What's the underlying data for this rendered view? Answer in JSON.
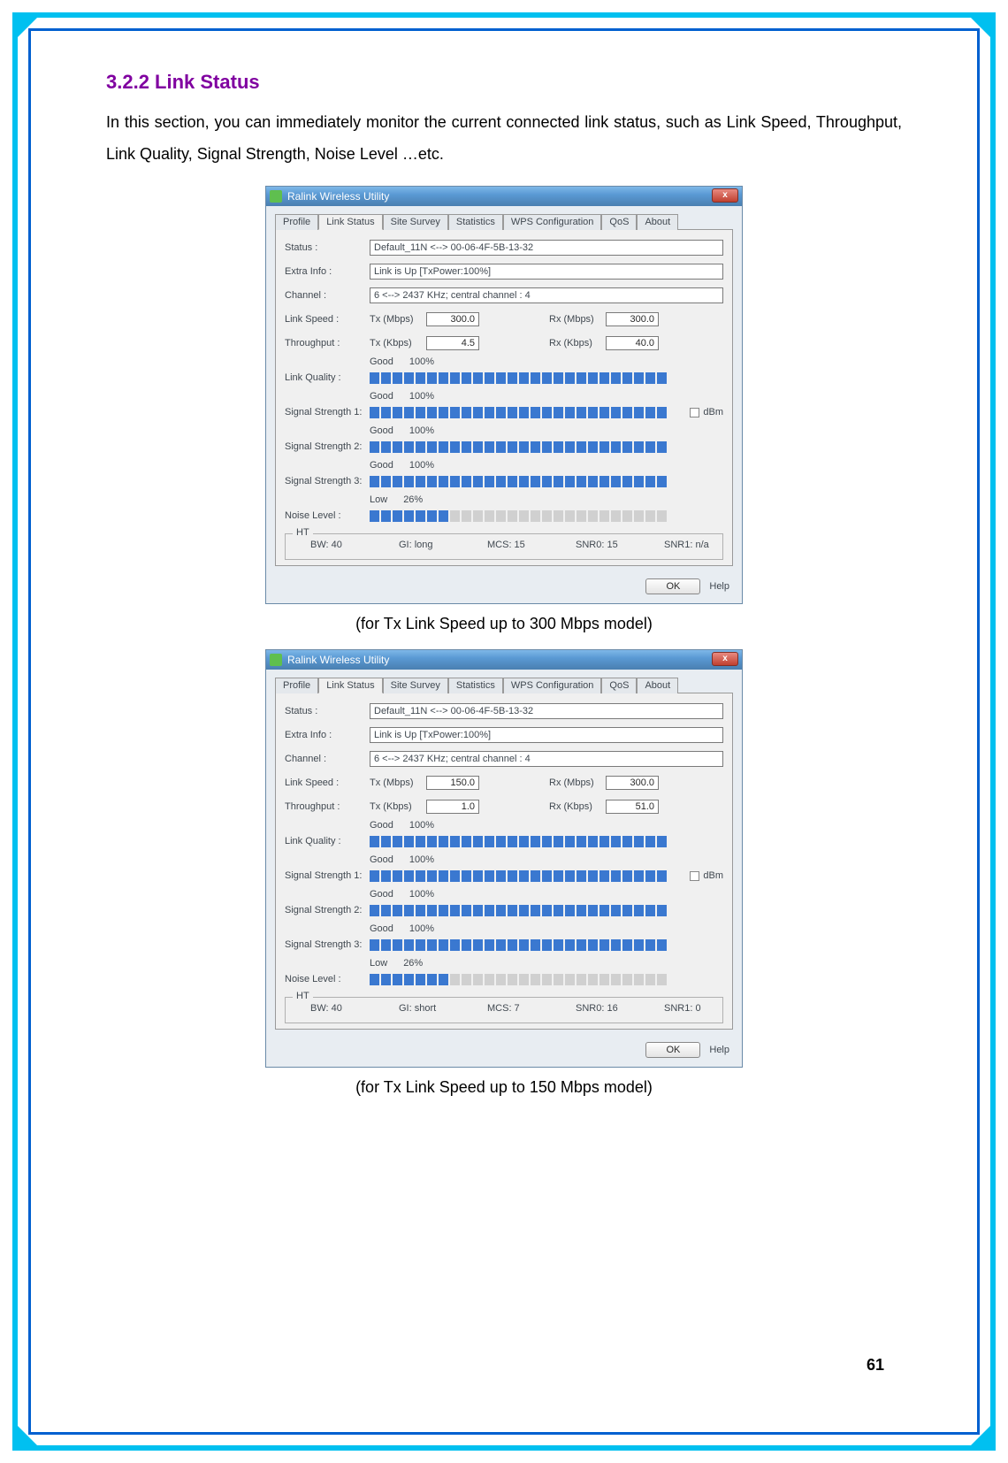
{
  "frame": {
    "outer_color": "#00c0f0",
    "inner_color": "#0060d0"
  },
  "heading": "3.2.2   Link Status",
  "paragraph": "In this section, you can immediately monitor the current connected link status, such as Link Speed, Throughput, Link Quality, Signal Strength, Noise Level …etc.",
  "caption1": "(for Tx Link Speed up to 300 Mbps model)",
  "caption2": "(for Tx Link Speed up to 150 Mbps model)",
  "page_number": "61",
  "window_title": "Ralink Wireless Utility",
  "close_label": "x",
  "tabs": [
    "Profile",
    "Link Status",
    "Site Survey",
    "Statistics",
    "WPS Configuration",
    "QoS",
    "About"
  ],
  "active_tab_index": 1,
  "labels": {
    "status": "Status :",
    "extra": "Extra Info :",
    "channel": "Channel :",
    "linkspeed": "Link Speed :",
    "throughput": "Throughput :",
    "tx_mbps": "Tx (Mbps)",
    "rx_mbps": "Rx (Mbps)",
    "tx_kbps": "Tx (Kbps)",
    "rx_kbps": "Rx (Kbps)",
    "linkquality": "Link Quality :",
    "sig1": "Signal Strength 1:",
    "sig2": "Signal Strength 2:",
    "sig3": "Signal Strength 3:",
    "noise": "Noise Level :",
    "dbm": "dBm",
    "ht": "HT",
    "ok": "OK",
    "help": "Help"
  },
  "shot1": {
    "status": "Default_11N <--> 00-06-4F-5B-13-32",
    "extra": "Link is Up [TxPower:100%]",
    "channel": "6 <--> 2437 KHz; central channel : 4",
    "tx_mbps": "300.0",
    "rx_mbps": "300.0",
    "tx_kbps": "4.5",
    "rx_kbps": "40.0",
    "bars": {
      "total_segments": 26,
      "link_quality": {
        "label": "Good",
        "pct": "100%",
        "filled": 26
      },
      "sig1": {
        "label": "Good",
        "pct": "100%",
        "filled": 26,
        "show_dbm": true
      },
      "sig2": {
        "label": "Good",
        "pct": "100%",
        "filled": 26
      },
      "sig3": {
        "label": "Good",
        "pct": "100%",
        "filled": 26
      },
      "noise": {
        "label": "Low",
        "pct": "26%",
        "filled": 7
      }
    },
    "ht": {
      "bw": "BW: 40",
      "gi": "GI: long",
      "mcs": "MCS: 15",
      "snr0": "SNR0: 15",
      "snr1": "SNR1: n/a"
    }
  },
  "shot2": {
    "status": "Default_11N <--> 00-06-4F-5B-13-32",
    "extra": "Link is Up [TxPower:100%]",
    "channel": "6 <--> 2437 KHz; central channel : 4",
    "tx_mbps": "150.0",
    "rx_mbps": "300.0",
    "tx_kbps": "1.0",
    "rx_kbps": "51.0",
    "bars": {
      "total_segments": 26,
      "link_quality": {
        "label": "Good",
        "pct": "100%",
        "filled": 26
      },
      "sig1": {
        "label": "Good",
        "pct": "100%",
        "filled": 26,
        "show_dbm": true
      },
      "sig2": {
        "label": "Good",
        "pct": "100%",
        "filled": 26
      },
      "sig3": {
        "label": "Good",
        "pct": "100%",
        "filled": 26
      },
      "noise": {
        "label": "Low",
        "pct": "26%",
        "filled": 7
      }
    },
    "ht": {
      "bw": "BW: 40",
      "gi": "GI: short",
      "mcs": "MCS: 7",
      "snr0": "SNR0: 16",
      "snr1": "SNR1: 0"
    }
  },
  "colors": {
    "heading": "#8000a0",
    "bar_on": "#3a78d0",
    "bar_off": "#d0d0d0",
    "titlebar_grad": [
      "#7fb8e8",
      "#4a7fb0"
    ],
    "close_btn": "#c04030"
  }
}
